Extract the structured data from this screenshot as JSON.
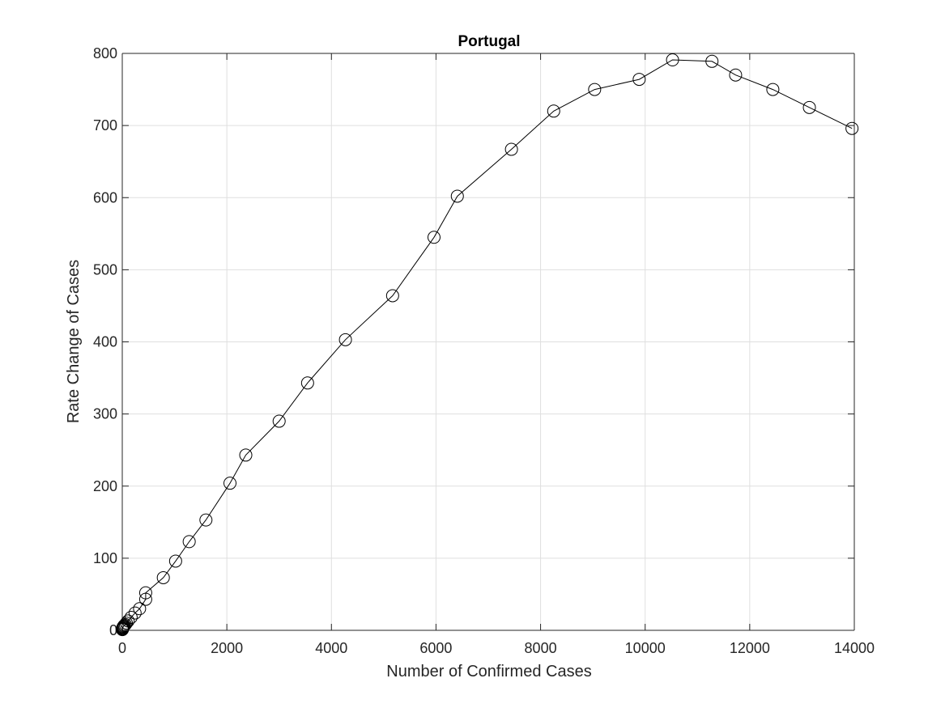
{
  "chart_data": {
    "type": "line",
    "title": "Portugal",
    "xlabel": "Number of Confirmed Cases",
    "ylabel": "Rate Change of Cases",
    "xlim": [
      0,
      14000
    ],
    "ylim": [
      0,
      800
    ],
    "xticks": [
      0,
      2000,
      4000,
      6000,
      8000,
      10000,
      12000,
      14000
    ],
    "yticks": [
      0,
      100,
      200,
      300,
      400,
      500,
      600,
      700,
      800
    ],
    "grid": true,
    "marker": "open-circle",
    "line_color": "#000000",
    "series": [
      {
        "x": [
          2,
          4,
          6,
          9,
          13,
          20,
          30,
          41,
          59,
          78,
          112,
          169,
          245,
          331,
          448,
          448,
          785,
          1020,
          1280,
          1600,
          2060,
          2362,
          3000,
          3544,
          4268,
          5170,
          5962,
          6408,
          7443,
          8251,
          9034,
          9886,
          10524,
          11278,
          11730,
          12442,
          13141,
          13956
        ],
        "y": [
          1,
          2,
          2,
          3,
          4,
          5,
          6,
          7,
          8,
          10,
          13,
          18,
          24,
          30,
          43,
          52,
          73,
          96,
          123,
          153,
          204,
          243,
          290,
          343,
          403,
          464,
          545,
          602,
          667,
          720,
          750,
          764,
          791,
          789,
          770,
          750,
          725,
          696
        ]
      }
    ]
  }
}
